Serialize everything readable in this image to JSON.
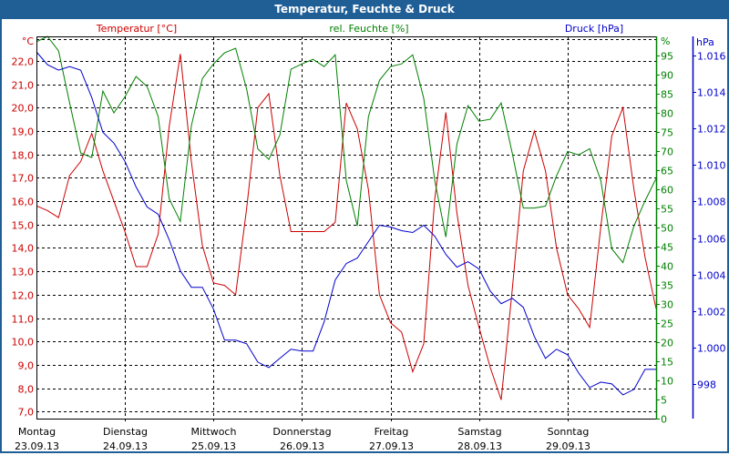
{
  "window": {
    "title": "Temperatur, Feuchte & Druck"
  },
  "colors": {
    "title_bar": "#1f5f96",
    "temperature": "#cc0000",
    "humidity": "#008000",
    "pressure": "#0000cc",
    "grid": "#000000"
  },
  "chart_data": {
    "type": "line",
    "title": "Temperatur, Feuchte & Druck",
    "grid": true,
    "x_axis": {
      "categories": [
        {
          "day": "Montag",
          "date": "23.09.13"
        },
        {
          "day": "Dienstag",
          "date": "24.09.13"
        },
        {
          "day": "Mittwoch",
          "date": "25.09.13"
        },
        {
          "day": "Donnerstag",
          "date": "26.09.13"
        },
        {
          "day": "Freitag",
          "date": "27.09.13"
        },
        {
          "day": "Samstag",
          "date": "28.09.13"
        },
        {
          "day": "Sonntag",
          "date": "29.09.13"
        }
      ],
      "range": [
        "2013-09-23 00:00",
        "2013-09-30 00:00"
      ]
    },
    "axes": {
      "temperature": {
        "label": "Temperatur [°C]",
        "unit": "°C",
        "side": "left",
        "ylim": [
          6.7,
          23.05
        ],
        "ticks": [
          22,
          21,
          20,
          19,
          18,
          17,
          16,
          15,
          14,
          13,
          12,
          11,
          10,
          9,
          8,
          7
        ],
        "tick_labels": [
          "22,0",
          "21,0",
          "20,0",
          "19,0",
          "18,0",
          "17,0",
          "16,0",
          "15,0",
          "14,0",
          "13,0",
          "12,0",
          "11,0",
          "10,0",
          "9,0",
          "8,0",
          "7,0"
        ]
      },
      "humidity": {
        "label": "rel. Feuchte [%]",
        "unit": "%",
        "side": "right",
        "ylim": [
          0,
          100
        ],
        "ticks": [
          95,
          90,
          85,
          80,
          75,
          70,
          65,
          60,
          55,
          50,
          45,
          40,
          35,
          30,
          25,
          20,
          15,
          10,
          5,
          0
        ],
        "tick_labels": [
          "95",
          "90",
          "85",
          "80",
          "75",
          "70",
          "65",
          "60",
          "55",
          "50",
          "45",
          "40",
          "35",
          "30",
          "25",
          "20",
          "15",
          "10",
          "5",
          "0"
        ]
      },
      "pressure": {
        "label": "Druck [hPa]",
        "unit": "hPa",
        "side": "right-outer",
        "ylim": [
          996.1,
          1017.05
        ],
        "ticks": [
          1016,
          1014,
          1012,
          1010,
          1008,
          1006,
          1004,
          1002,
          1000,
          998
        ],
        "tick_labels": [
          "1.016",
          "1.014",
          "1.012",
          "1.010",
          "1.008",
          "1.006",
          "1.004",
          "1.002",
          "1.000",
          "998"
        ]
      }
    },
    "x": [
      "2013-09-23 00:00",
      "2013-09-23 03:00",
      "2013-09-23 06:00",
      "2013-09-23 09:00",
      "2013-09-23 12:00",
      "2013-09-23 15:00",
      "2013-09-23 18:00",
      "2013-09-23 21:00",
      "2013-09-24 00:00",
      "2013-09-24 03:00",
      "2013-09-24 06:00",
      "2013-09-24 09:00",
      "2013-09-24 12:00",
      "2013-09-24 15:00",
      "2013-09-24 18:00",
      "2013-09-24 21:00",
      "2013-09-25 00:00",
      "2013-09-25 03:00",
      "2013-09-25 06:00",
      "2013-09-25 09:00",
      "2013-09-25 12:00",
      "2013-09-25 15:00",
      "2013-09-25 18:00",
      "2013-09-25 21:00",
      "2013-09-26 00:00",
      "2013-09-26 03:00",
      "2013-09-26 06:00",
      "2013-09-26 09:00",
      "2013-09-26 12:00",
      "2013-09-26 15:00",
      "2013-09-26 18:00",
      "2013-09-26 21:00",
      "2013-09-27 00:00",
      "2013-09-27 03:00",
      "2013-09-27 06:00",
      "2013-09-27 09:00",
      "2013-09-27 12:00",
      "2013-09-27 15:00",
      "2013-09-27 18:00",
      "2013-09-27 21:00",
      "2013-09-28 00:00",
      "2013-09-28 03:00",
      "2013-09-28 06:00",
      "2013-09-28 09:00",
      "2013-09-28 12:00",
      "2013-09-28 15:00",
      "2013-09-28 18:00",
      "2013-09-28 21:00",
      "2013-09-29 00:00",
      "2013-09-29 03:00",
      "2013-09-29 06:00",
      "2013-09-29 09:00",
      "2013-09-29 12:00",
      "2013-09-29 15:00",
      "2013-09-29 18:00",
      "2013-09-29 21:00",
      "2013-09-30 00:00"
    ],
    "series": [
      {
        "name": "Temperatur [°C]",
        "axis": "temperature",
        "color": "#cc0000",
        "values": [
          15.8,
          15.6,
          15.3,
          17.1,
          17.7,
          18.9,
          17.3,
          16.0,
          14.7,
          13.2,
          13.2,
          14.6,
          19.2,
          22.3,
          17.7,
          14.1,
          12.5,
          12.4,
          12.0,
          15.7,
          20.0,
          20.6,
          17.1,
          14.7,
          14.7,
          14.7,
          14.7,
          15.1,
          20.2,
          19.1,
          16.5,
          12.0,
          10.8,
          10.4,
          8.7,
          9.9,
          16.1,
          19.8,
          15.5,
          12.4,
          10.6,
          8.9,
          7.5,
          12.2,
          17.3,
          19.0,
          17.3,
          14.0,
          12.0,
          11.4,
          10.6,
          14.9,
          18.8,
          20.0,
          16.5,
          13.6,
          11.4
        ]
      },
      {
        "name": "rel. Feuchte [%]",
        "axis": "humidity",
        "color": "#008000",
        "values": [
          98.6,
          100,
          96.2,
          82.6,
          69.5,
          68.3,
          85.7,
          80.0,
          84.2,
          89.5,
          86.9,
          79.0,
          57.5,
          51.6,
          76.6,
          89.0,
          92.8,
          95.7,
          96.9,
          86.2,
          70.6,
          67.8,
          74.2,
          91.4,
          92.8,
          94.0,
          92.1,
          95.2,
          62.3,
          50.4,
          79.0,
          88.5,
          92.1,
          92.8,
          95.2,
          83.8,
          62.3,
          47.5,
          71.8,
          81.9,
          77.8,
          78.3,
          82.6,
          69.5,
          55.1,
          55.1,
          55.6,
          63.5,
          69.9,
          69.0,
          70.6,
          62.3,
          44.4,
          40.8,
          50.4,
          57.0,
          62.8
        ]
      },
      {
        "name": "Druck [hPa]",
        "axis": "pressure",
        "color": "#0000cc",
        "values": [
          1016.2,
          1015.5,
          1015.2,
          1015.4,
          1015.2,
          1013.7,
          1011.8,
          1011.2,
          1010.2,
          1008.8,
          1007.7,
          1007.3,
          1005.9,
          1004.2,
          1003.3,
          1003.3,
          1002.1,
          1000.4,
          1000.4,
          1000.2,
          999.2,
          998.9,
          999.4,
          999.9,
          999.8,
          999.8,
          1001.4,
          1003.7,
          1004.6,
          1004.9,
          1005.8,
          1006.7,
          1006.6,
          1006.4,
          1006.3,
          1006.7,
          1006.1,
          1005.1,
          1004.4,
          1004.7,
          1004.3,
          1003.1,
          1002.4,
          1002.7,
          1002.2,
          1000.6,
          999.4,
          999.9,
          999.6,
          998.6,
          997.8,
          998.1,
          998.0,
          997.4,
          997.7,
          998.8,
          998.8
        ]
      }
    ]
  }
}
